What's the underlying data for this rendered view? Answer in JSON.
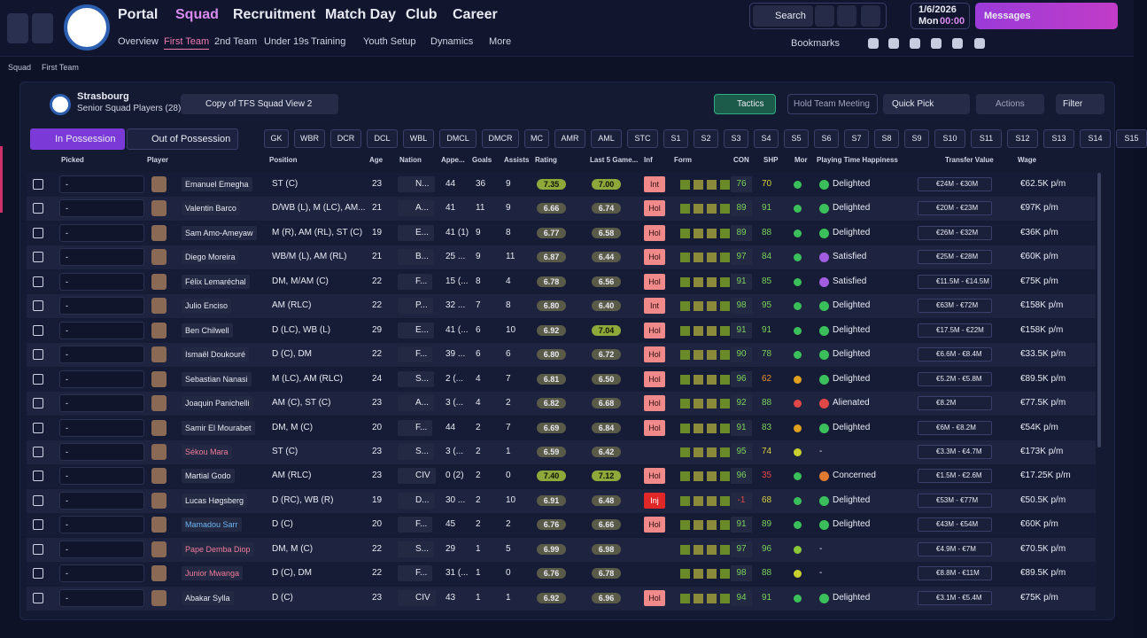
{
  "nav": {
    "main": [
      "Portal",
      "Squad",
      "Recruitment",
      "Match Day",
      "Club",
      "Career"
    ],
    "sub": [
      "Overview",
      "First Team",
      "2nd Team",
      "Under 19s",
      "Training",
      "Youth Setup",
      "Dynamics",
      "More"
    ],
    "search": "Search",
    "date": "1/6/2026",
    "day": "Mon",
    "time": "00:00",
    "messages": "Messages",
    "bookmarks": "Bookmarks"
  },
  "breadcrumb": [
    "Squad",
    "First Team"
  ],
  "header": {
    "club": "Strasbourg",
    "subtitle": "Senior Squad Players (28)",
    "view": "Copy of TFS Squad View 2",
    "tactics": "Tactics",
    "meeting": "Hold Team Meeting",
    "quick_pick": "Quick Pick",
    "actions": "Actions",
    "filter": "Filter"
  },
  "tabs": [
    "In Possession",
    "Out of Possession"
  ],
  "positions": [
    "GK",
    "WBR",
    "DCR",
    "DCL",
    "WBL",
    "DMCL",
    "DMCR",
    "MC",
    "AMR",
    "AML",
    "STC",
    "S1",
    "S2",
    "S3",
    "S4",
    "S5",
    "S6",
    "S7",
    "S8",
    "S9",
    "S10",
    "S11",
    "S12",
    "S13",
    "S14",
    "S15"
  ],
  "table": {
    "columns": [
      "Picked",
      "Player",
      "Position",
      "Age",
      "Nation",
      "Appe...",
      "Goals",
      "Assists",
      "Rating",
      "Last 5 Game...",
      "Inf",
      "Form",
      "CON",
      "SHP",
      "Mor",
      "Playing Time Happiness",
      "Transfer Value",
      "Wage"
    ],
    "rows": [
      {
        "picked": "-",
        "player": "Emanuel Emegha",
        "position": "ST (C)",
        "age": 23,
        "nation": "N...",
        "apps": "44",
        "goals": 36,
        "assists": 9,
        "rating": "7.35",
        "last5": "7.00",
        "inf": "Int",
        "con": 76,
        "shp": 70,
        "mor_color": "#3bbf5a",
        "happiness": "Delighted",
        "happiness_color": "#3bbf5a",
        "transfer_value": "€24M - €30M",
        "wage": "€62.5K p/m"
      },
      {
        "picked": "-",
        "player": "Valentin Barco",
        "position": "D/WB (L), M (LC), AM...",
        "age": 21,
        "nation": "A...",
        "apps": "41",
        "goals": 11,
        "assists": 9,
        "rating": "6.66",
        "last5": "6.74",
        "inf": "Hol",
        "con": 89,
        "shp": 91,
        "mor_color": "#3bbf5a",
        "happiness": "Delighted",
        "happiness_color": "#3bbf5a",
        "transfer_value": "€20M - €23M",
        "wage": "€97K p/m"
      },
      {
        "picked": "-",
        "player": "Sam Amo-Ameyaw",
        "position": "M (R), AM (RL), ST (C)",
        "age": 19,
        "nation": "E...",
        "apps": "41 (1)",
        "goals": 9,
        "assists": 8,
        "rating": "6.77",
        "last5": "6.58",
        "inf": "Hol",
        "con": 89,
        "shp": 88,
        "mor_color": "#3bbf5a",
        "happiness": "Delighted",
        "happiness_color": "#3bbf5a",
        "transfer_value": "€26M - €32M",
        "wage": "€36K p/m"
      },
      {
        "picked": "-",
        "player": "Diego Moreira",
        "position": "WB/M (L), AM (RL)",
        "age": 21,
        "nation": "B...",
        "apps": "25 ...",
        "goals": 9,
        "assists": 11,
        "rating": "6.87",
        "last5": "6.44",
        "inf": "Hol",
        "con": 97,
        "shp": 84,
        "mor_color": "#3bbf5a",
        "happiness": "Satisfied",
        "happiness_color": "#a25ce0",
        "transfer_value": "€25M - €28M",
        "wage": "€60K p/m"
      },
      {
        "picked": "-",
        "player": "Félix Lemaréchal",
        "position": "DM, M/AM (C)",
        "age": 22,
        "nation": "F...",
        "apps": "15 (...",
        "goals": 8,
        "assists": 4,
        "rating": "6.78",
        "last5": "6.56",
        "inf": "Hol",
        "con": 91,
        "shp": 85,
        "mor_color": "#3bbf5a",
        "happiness": "Satisfied",
        "happiness_color": "#a25ce0",
        "transfer_value": "€11.5M - €14.5M",
        "wage": "€75K p/m"
      },
      {
        "picked": "-",
        "player": "Julio Enciso",
        "position": "AM (RLC)",
        "age": 22,
        "nation": "P...",
        "apps": "32 ...",
        "goals": 7,
        "assists": 8,
        "rating": "6.80",
        "last5": "6.40",
        "inf": "Int",
        "con": 98,
        "shp": 95,
        "mor_color": "#3bbf5a",
        "happiness": "Delighted",
        "happiness_color": "#3bbf5a",
        "transfer_value": "€63M - €72M",
        "wage": "€158K p/m"
      },
      {
        "picked": "-",
        "player": "Ben Chilwell",
        "position": "D (LC), WB (L)",
        "age": 29,
        "nation": "E...",
        "apps": "41 (...",
        "goals": 6,
        "assists": 10,
        "rating": "6.92",
        "last5": "7.04",
        "inf": "Hol",
        "con": 91,
        "shp": 91,
        "mor_color": "#3bbf5a",
        "happiness": "Delighted",
        "happiness_color": "#3bbf5a",
        "transfer_value": "€17.5M - €22M",
        "wage": "€158K p/m"
      },
      {
        "picked": "-",
        "player": "Ismaël Doukouré",
        "position": "D (C), DM",
        "age": 22,
        "nation": "F...",
        "apps": "39 ...",
        "goals": 6,
        "assists": 6,
        "rating": "6.80",
        "last5": "6.72",
        "inf": "Hol",
        "con": 90,
        "shp": 78,
        "mor_color": "#3bbf5a",
        "happiness": "Delighted",
        "happiness_color": "#3bbf5a",
        "transfer_value": "€6.6M - €8.4M",
        "wage": "€33.5K p/m"
      },
      {
        "picked": "-",
        "player": "Sebastian Nanasi",
        "position": "M (LC), AM (RLC)",
        "age": 24,
        "nation": "S...",
        "apps": "2 (...",
        "goals": 4,
        "assists": 7,
        "rating": "6.81",
        "last5": "6.50",
        "inf": "Hol",
        "con": 96,
        "shp": 62,
        "mor_color": "#e0a020",
        "happiness": "Delighted",
        "happiness_color": "#3bbf5a",
        "transfer_value": "€5.2M - €5.8M",
        "wage": "€89.5K p/m"
      },
      {
        "picked": "-",
        "player": "Joaquin Panichelli",
        "position": "AM (C), ST (C)",
        "age": 23,
        "nation": "A...",
        "apps": "3 (...",
        "goals": 4,
        "assists": 2,
        "rating": "6.82",
        "last5": "6.68",
        "inf": "Hol",
        "con": 92,
        "shp": 88,
        "mor_color": "#e04848",
        "happiness": "Alienated",
        "happiness_color": "#e04848",
        "transfer_value": "€8.2M",
        "wage": "€77.5K p/m"
      },
      {
        "picked": "-",
        "player": "Samir El Mourabet",
        "position": "DM, M (C)",
        "age": 20,
        "nation": "F...",
        "apps": "44",
        "goals": 2,
        "assists": 7,
        "rating": "6.69",
        "last5": "6.84",
        "inf": "Hol",
        "con": 91,
        "shp": 83,
        "mor_color": "#e0a020",
        "happiness": "Delighted",
        "happiness_color": "#3bbf5a",
        "transfer_value": "€6M - €8.2M",
        "wage": "€54K p/m"
      },
      {
        "picked": "-",
        "player": "Sékou Mara",
        "name_color": "#f07c9a",
        "position": "ST (C)",
        "age": 23,
        "nation": "S...",
        "apps": "3 (...",
        "goals": 2,
        "assists": 1,
        "rating": "6.59",
        "last5": "6.42",
        "con": 95,
        "shp": 74,
        "mor_color": "#c8d030",
        "happiness": "-",
        "transfer_value": "€3.3M - €4.7M",
        "wage": "€173K p/m"
      },
      {
        "picked": "-",
        "player": "Martial Godo",
        "position": "AM (RLC)",
        "age": 23,
        "nation": "CIV",
        "apps": "0 (2)",
        "goals": 2,
        "assists": 0,
        "rating": "7.40",
        "last5": "7.12",
        "inf": "Hol",
        "con": 96,
        "shp": 35,
        "mor_color": "#3bbf5a",
        "happiness": "Concerned",
        "happiness_color": "#e07a30",
        "transfer_value": "€1.5M - €2.6M",
        "wage": "€17.25K p/m"
      },
      {
        "picked": "-",
        "player": "Lucas Høgsberg",
        "position": "D (RC), WB (R)",
        "age": 19,
        "nation": "D...",
        "apps": "30 ...",
        "goals": 2,
        "assists": 10,
        "rating": "6.91",
        "last5": "6.48",
        "inf": "Inj",
        "inf_color": "#e02828",
        "con": -1,
        "shp": 68,
        "mor_color": "#3bbf5a",
        "happiness": "Delighted",
        "happiness_color": "#3bbf5a",
        "transfer_value": "€53M - €77M",
        "wage": "€50.5K p/m"
      },
      {
        "picked": "-",
        "player": "Mamadou Sarr",
        "name_color": "#6cb6f0",
        "position": "D (C)",
        "age": 20,
        "nation": "F...",
        "apps": "45",
        "goals": 2,
        "assists": 2,
        "rating": "6.76",
        "last5": "6.66",
        "inf": "Hol",
        "con": 91,
        "shp": 89,
        "mor_color": "#3bbf5a",
        "happiness": "Delighted",
        "happiness_color": "#3bbf5a",
        "transfer_value": "€43M - €54M",
        "wage": "€60K p/m"
      },
      {
        "picked": "-",
        "player": "Pape Demba Diop",
        "name_color": "#f07c9a",
        "position": "DM, M (C)",
        "age": 22,
        "nation": "S...",
        "apps": "29",
        "goals": 1,
        "assists": 5,
        "rating": "6.99",
        "last5": "6.98",
        "con": 97,
        "shp": 96,
        "mor_color": "#8cc83a",
        "happiness": "-",
        "transfer_value": "€4.9M - €7M",
        "wage": "€70.5K p/m"
      },
      {
        "picked": "-",
        "player": "Junior Mwanga",
        "name_color": "#f07c9a",
        "position": "D (C), DM",
        "age": 22,
        "nation": "F...",
        "apps": "31 (...",
        "goals": 1,
        "assists": 0,
        "rating": "6.76",
        "last5": "6.78",
        "con": 98,
        "shp": 88,
        "mor_color": "#c8d030",
        "happiness": "-",
        "transfer_value": "€8.8M - €11M",
        "wage": "€89.5K p/m"
      },
      {
        "picked": "-",
        "player": "Abakar Sylla",
        "position": "D (C)",
        "age": 23,
        "nation": "CIV",
        "apps": "43",
        "goals": 1,
        "assists": 1,
        "rating": "6.92",
        "last5": "6.96",
        "inf": "Hol",
        "con": 94,
        "shp": 91,
        "mor_color": "#3bbf5a",
        "happiness": "Delighted",
        "happiness_color": "#3bbf5a",
        "transfer_value": "€3.1M - €5.4M",
        "wage": "€75K p/m"
      }
    ]
  }
}
